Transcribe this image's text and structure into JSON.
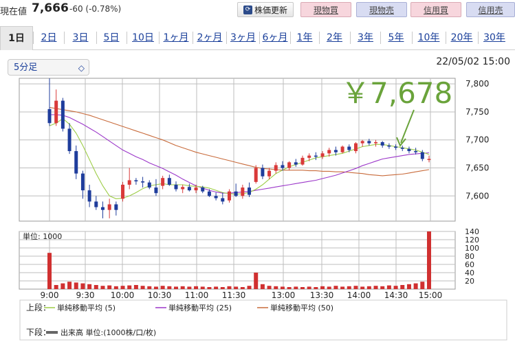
{
  "header": {
    "price_label": "現在値",
    "price_value": "7,666",
    "price_change": "-60 (-0.78%)",
    "refresh_label": "株価更新",
    "cash_buy": "現物買",
    "cash_sell": "現物売",
    "margin_buy": "信用買",
    "margin_sell": "信用売"
  },
  "tabs": [
    "1日",
    "2日",
    "3日",
    "5日",
    "10日",
    "1ヶ月",
    "2ヶ月",
    "3ヶ月",
    "6ヶ月",
    "1年",
    "2年",
    "3年",
    "5年",
    "10年",
    "20年",
    "30年"
  ],
  "active_tab": "1日",
  "interval": {
    "selected": "5分足"
  },
  "timestamp": "22/05/02 15:00",
  "annotation": "￥7,678",
  "colors": {
    "up": "#d93a3a",
    "down": "#1f3d9c",
    "ma5": "#9ccc45",
    "ma25": "#9b36c9",
    "ma50": "#c86a3a",
    "volume": "#d03030",
    "annotation": "#6aa33b"
  },
  "chart_data": [
    {
      "type": "candlestick",
      "title": "",
      "x_ticks": [
        "9:00",
        "9:30",
        "10:00",
        "10:30",
        "11:00",
        "11:30",
        "13:00",
        "13:30",
        "14:00",
        "14:30",
        "15:00"
      ],
      "y_ticks": [
        7600,
        7650,
        7700,
        7750,
        7800
      ],
      "ylim": [
        7555,
        7810
      ],
      "candles": [
        {
          "o": 7755,
          "h": 7810,
          "l": 7725,
          "c": 7730
        },
        {
          "o": 7730,
          "h": 7790,
          "l": 7725,
          "c": 7770
        },
        {
          "o": 7770,
          "h": 7775,
          "l": 7715,
          "c": 7720
        },
        {
          "o": 7720,
          "h": 7730,
          "l": 7675,
          "c": 7680
        },
        {
          "o": 7680,
          "h": 7690,
          "l": 7630,
          "c": 7640
        },
        {
          "o": 7640,
          "h": 7645,
          "l": 7595,
          "c": 7610
        },
        {
          "o": 7610,
          "h": 7620,
          "l": 7580,
          "c": 7590
        },
        {
          "o": 7590,
          "h": 7600,
          "l": 7575,
          "c": 7580
        },
        {
          "o": 7580,
          "h": 7590,
          "l": 7560,
          "c": 7575
        },
        {
          "o": 7575,
          "h": 7595,
          "l": 7560,
          "c": 7585
        },
        {
          "o": 7585,
          "h": 7590,
          "l": 7565,
          "c": 7575
        },
        {
          "o": 7595,
          "h": 7625,
          "l": 7590,
          "c": 7620
        },
        {
          "o": 7620,
          "h": 7650,
          "l": 7612,
          "c": 7628
        },
        {
          "o": 7628,
          "h": 7632,
          "l": 7620,
          "c": 7626
        },
        {
          "o": 7626,
          "h": 7634,
          "l": 7615,
          "c": 7624
        },
        {
          "o": 7624,
          "h": 7628,
          "l": 7612,
          "c": 7615
        },
        {
          "o": 7615,
          "h": 7630,
          "l": 7600,
          "c": 7605
        },
        {
          "o": 7618,
          "h": 7636,
          "l": 7612,
          "c": 7632
        },
        {
          "o": 7632,
          "h": 7638,
          "l": 7618,
          "c": 7620
        },
        {
          "o": 7620,
          "h": 7626,
          "l": 7608,
          "c": 7612
        },
        {
          "o": 7612,
          "h": 7620,
          "l": 7605,
          "c": 7616
        },
        {
          "o": 7616,
          "h": 7622,
          "l": 7608,
          "c": 7610
        },
        {
          "o": 7610,
          "h": 7620,
          "l": 7605,
          "c": 7615
        },
        {
          "o": 7615,
          "h": 7618,
          "l": 7605,
          "c": 7608
        },
        {
          "o": 7608,
          "h": 7612,
          "l": 7598,
          "c": 7600
        },
        {
          "o": 7600,
          "h": 7606,
          "l": 7592,
          "c": 7596
        },
        {
          "o": 7596,
          "h": 7606,
          "l": 7585,
          "c": 7590
        },
        {
          "o": 7592,
          "h": 7612,
          "l": 7588,
          "c": 7608
        },
        {
          "o": 7608,
          "h": 7622,
          "l": 7598,
          "c": 7600
        },
        {
          "o": 7600,
          "h": 7620,
          "l": 7595,
          "c": 7615
        },
        {
          "o": 7615,
          "h": 7624,
          "l": 7598,
          "c": 7602
        },
        {
          "o": 7625,
          "h": 7655,
          "l": 7622,
          "c": 7650
        },
        {
          "o": 7650,
          "h": 7656,
          "l": 7630,
          "c": 7635
        },
        {
          "o": 7635,
          "h": 7650,
          "l": 7630,
          "c": 7645
        },
        {
          "o": 7645,
          "h": 7660,
          "l": 7640,
          "c": 7655
        },
        {
          "o": 7655,
          "h": 7662,
          "l": 7645,
          "c": 7650
        },
        {
          "o": 7650,
          "h": 7662,
          "l": 7646,
          "c": 7660
        },
        {
          "o": 7660,
          "h": 7666,
          "l": 7652,
          "c": 7656
        },
        {
          "o": 7656,
          "h": 7672,
          "l": 7654,
          "c": 7668
        },
        {
          "o": 7668,
          "h": 7676,
          "l": 7662,
          "c": 7672
        },
        {
          "o": 7672,
          "h": 7678,
          "l": 7664,
          "c": 7670
        },
        {
          "o": 7670,
          "h": 7680,
          "l": 7666,
          "c": 7676
        },
        {
          "o": 7676,
          "h": 7686,
          "l": 7670,
          "c": 7682
        },
        {
          "o": 7682,
          "h": 7688,
          "l": 7672,
          "c": 7678
        },
        {
          "o": 7678,
          "h": 7690,
          "l": 7676,
          "c": 7688
        },
        {
          "o": 7688,
          "h": 7692,
          "l": 7678,
          "c": 7682
        },
        {
          "o": 7680,
          "h": 7696,
          "l": 7676,
          "c": 7694
        },
        {
          "o": 7694,
          "h": 7700,
          "l": 7688,
          "c": 7698
        },
        {
          "o": 7698,
          "h": 7702,
          "l": 7690,
          "c": 7694
        },
        {
          "o": 7694,
          "h": 7700,
          "l": 7688,
          "c": 7696
        },
        {
          "o": 7696,
          "h": 7698,
          "l": 7686,
          "c": 7690
        },
        {
          "o": 7690,
          "h": 7694,
          "l": 7684,
          "c": 7688
        },
        {
          "o": 7688,
          "h": 7692,
          "l": 7682,
          "c": 7686
        },
        {
          "o": 7686,
          "h": 7690,
          "l": 7680,
          "c": 7684
        },
        {
          "o": 7684,
          "h": 7688,
          "l": 7676,
          "c": 7680
        },
        {
          "o": 7680,
          "h": 7686,
          "l": 7674,
          "c": 7678
        },
        {
          "o": 7678,
          "h": 7682,
          "l": 7662,
          "c": 7666
        },
        {
          "o": 7666,
          "h": 7672,
          "l": 7660,
          "c": 7666
        }
      ],
      "ma5": [
        7725,
        7730,
        7738,
        7728,
        7712,
        7690,
        7665,
        7640,
        7618,
        7600,
        7595,
        7596,
        7600,
        7606,
        7613,
        7618,
        7620,
        7622,
        7620,
        7620,
        7620,
        7618,
        7617,
        7616,
        7614,
        7610,
        7606,
        7604,
        7603,
        7604,
        7606,
        7612,
        7620,
        7630,
        7640,
        7646,
        7652,
        7656,
        7660,
        7664,
        7668,
        7670,
        7672,
        7674,
        7676,
        7680,
        7684,
        7688,
        7690,
        7692,
        7692,
        7690,
        7688,
        7686,
        7684,
        7682,
        7678,
        7674
      ],
      "ma25": [
        7745,
        7745,
        7744,
        7740,
        7734,
        7728,
        7721,
        7714,
        7706,
        7698,
        7690,
        7682,
        7676,
        7670,
        7665,
        7659,
        7654,
        7649,
        7643,
        7637,
        7630,
        7624,
        7618,
        7614,
        7610,
        7607,
        7605,
        7605,
        7606,
        7607,
        7608,
        7610,
        7612,
        7614,
        7616,
        7618,
        7620,
        7622,
        7624,
        7626,
        7628,
        7631,
        7634,
        7637,
        7641,
        7645,
        7649,
        7654,
        7658,
        7662,
        7666,
        7668,
        7670,
        7672,
        7674,
        7675,
        7676,
        7677
      ],
      "ma50": [
        7758,
        7756,
        7754,
        7752,
        7750,
        7747,
        7744,
        7740,
        7736,
        7732,
        7728,
        7724,
        7720,
        7716,
        7712,
        7708,
        7704,
        7700,
        7695,
        7690,
        7686,
        7682,
        7678,
        7675,
        7672,
        7669,
        7666,
        7663,
        7660,
        7657,
        7654,
        7651,
        7649,
        7648,
        7647,
        7646,
        7646,
        7646,
        7646,
        7645,
        7645,
        7644,
        7644,
        7643,
        7643,
        7642,
        7641,
        7640,
        7638,
        7637,
        7636,
        7637,
        7638,
        7639,
        7641,
        7643,
        7645,
        7647
      ]
    },
    {
      "type": "bar",
      "title": "単位: 1000",
      "y_ticks": [
        20,
        40,
        60,
        80,
        100,
        120,
        140
      ],
      "ylim": [
        0,
        140
      ],
      "values": [
        88,
        10,
        14,
        18,
        16,
        14,
        12,
        10,
        8,
        9,
        7,
        8,
        9,
        10,
        8,
        7,
        6,
        8,
        7,
        6,
        7,
        6,
        7,
        6,
        5,
        6,
        5,
        7,
        6,
        5,
        8,
        40,
        12,
        8,
        7,
        6,
        5,
        6,
        5,
        6,
        5,
        7,
        6,
        8,
        6,
        7,
        8,
        6,
        7,
        8,
        7,
        9,
        8,
        10,
        12,
        14,
        18,
        140
      ]
    }
  ],
  "legend": {
    "upper_label": "上段：",
    "lower_label": "下段：",
    "items": [
      "単純移動平均 (5)",
      "単純移動平均 (25)",
      "単純移動平均 (50)"
    ],
    "volume_item": "出来高 単位:(1000株/口/枚)"
  }
}
